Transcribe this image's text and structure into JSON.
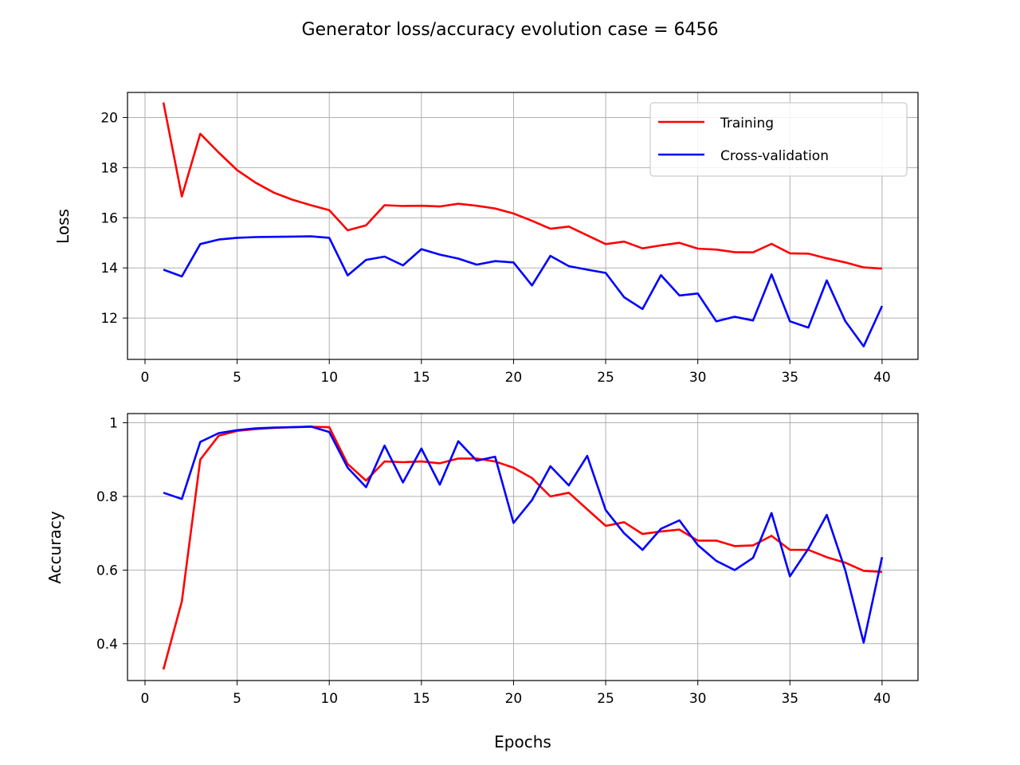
{
  "figure": {
    "title": "Generator loss/accuracy evolution case = 6456"
  },
  "chart_data": [
    {
      "type": "line",
      "title": "",
      "xlabel": "",
      "ylabel": "Loss",
      "xlim": [
        -0.95,
        41.95
      ],
      "ylim": [
        10.35,
        21.0
      ],
      "xticks": [
        0,
        5,
        10,
        15,
        20,
        25,
        30,
        35,
        40
      ],
      "yticks": [
        12,
        14,
        16,
        18,
        20
      ],
      "grid": true,
      "legend": "top-right",
      "x": [
        1,
        2,
        3,
        4,
        5,
        6,
        7,
        8,
        9,
        10,
        11,
        12,
        13,
        14,
        15,
        16,
        17,
        18,
        19,
        20,
        21,
        22,
        23,
        24,
        25,
        26,
        27,
        28,
        29,
        30,
        31,
        32,
        33,
        34,
        35,
        36,
        37,
        38,
        39,
        40
      ],
      "series": [
        {
          "name": "Training",
          "color": "#ff0000",
          "values": [
            20.6,
            16.85,
            19.35,
            18.6,
            17.9,
            17.4,
            17.0,
            16.72,
            16.5,
            16.3,
            15.5,
            15.7,
            16.5,
            16.47,
            16.48,
            16.45,
            16.56,
            16.48,
            16.37,
            16.17,
            15.88,
            15.56,
            15.65,
            15.3,
            14.95,
            15.05,
            14.78,
            14.9,
            15.0,
            14.77,
            14.73,
            14.63,
            14.62,
            14.96,
            14.58,
            14.57,
            14.38,
            14.22,
            14.02,
            13.97
          ]
        },
        {
          "name": "Cross-validation",
          "color": "#0000ff",
          "values": [
            13.93,
            13.66,
            14.95,
            15.13,
            15.2,
            15.23,
            15.24,
            15.25,
            15.26,
            15.2,
            13.7,
            14.32,
            14.45,
            14.1,
            14.75,
            14.53,
            14.37,
            14.13,
            14.27,
            14.22,
            13.3,
            14.48,
            14.07,
            13.93,
            13.8,
            12.83,
            12.36,
            13.71,
            12.9,
            12.98,
            11.87,
            12.05,
            11.9,
            13.74,
            11.87,
            11.62,
            13.5,
            11.88,
            10.87,
            12.48
          ]
        }
      ]
    },
    {
      "type": "line",
      "title": "",
      "xlabel": "Epochs",
      "ylabel": "Accuracy",
      "xlim": [
        -0.95,
        41.95
      ],
      "ylim": [
        0.3,
        1.025
      ],
      "xticks": [
        0,
        5,
        10,
        15,
        20,
        25,
        30,
        35,
        40
      ],
      "yticks": [
        0.4,
        0.6,
        0.8,
        1.0
      ],
      "grid": true,
      "legend": "none",
      "x": [
        1,
        2,
        3,
        4,
        5,
        6,
        7,
        8,
        9,
        10,
        11,
        12,
        13,
        14,
        15,
        16,
        17,
        18,
        19,
        20,
        21,
        22,
        23,
        24,
        25,
        26,
        27,
        28,
        29,
        30,
        31,
        32,
        33,
        34,
        35,
        36,
        37,
        38,
        39,
        40
      ],
      "series": [
        {
          "name": "Training",
          "color": "#ff0000",
          "values": [
            0.33,
            0.515,
            0.9,
            0.965,
            0.978,
            0.983,
            0.986,
            0.988,
            0.989,
            0.988,
            0.888,
            0.843,
            0.895,
            0.893,
            0.895,
            0.89,
            0.903,
            0.903,
            0.895,
            0.878,
            0.85,
            0.8,
            0.81,
            0.765,
            0.72,
            0.73,
            0.698,
            0.705,
            0.71,
            0.68,
            0.68,
            0.665,
            0.667,
            0.693,
            0.655,
            0.655,
            0.635,
            0.62,
            0.598,
            0.595
          ]
        },
        {
          "name": "Cross-validation",
          "color": "#0000ff",
          "values": [
            0.81,
            0.793,
            0.948,
            0.972,
            0.98,
            0.985,
            0.987,
            0.988,
            0.99,
            0.975,
            0.878,
            0.825,
            0.938,
            0.838,
            0.93,
            0.832,
            0.95,
            0.897,
            0.908,
            0.728,
            0.79,
            0.882,
            0.83,
            0.91,
            0.763,
            0.7,
            0.655,
            0.712,
            0.735,
            0.668,
            0.625,
            0.6,
            0.633,
            0.755,
            0.583,
            0.658,
            0.75,
            0.6,
            0.403,
            0.635
          ]
        }
      ]
    }
  ]
}
